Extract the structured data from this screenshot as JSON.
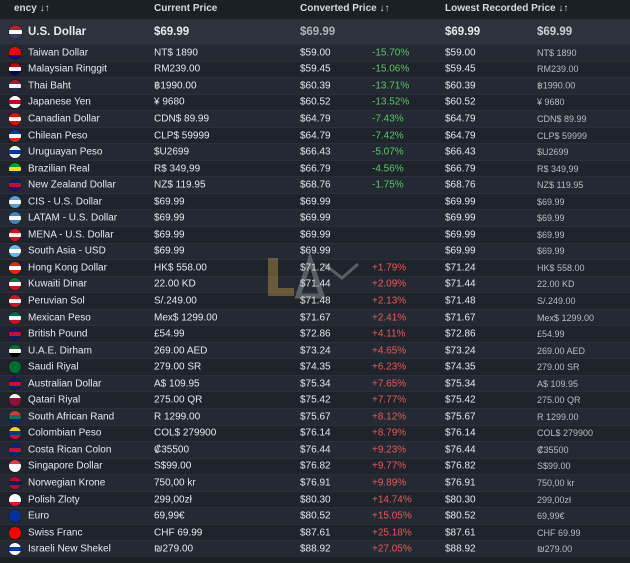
{
  "headers": {
    "currency": "ency ↓↑",
    "current": "Current Price",
    "converted": "Converted Price ↓↑",
    "lowest": "Lowest Recorded Price ↓↑"
  },
  "base": {
    "name": "U.S. Dollar",
    "current": "$69.99",
    "converted": "$69.99",
    "lowest": "$69.99",
    "lowest_native": "$69.99",
    "flag": [
      "#b22234",
      "#ffffff",
      "#3c3b6e"
    ]
  },
  "rows": [
    {
      "name": "Taiwan Dollar",
      "current": "NT$ 1890",
      "converted": "$59.00",
      "pct": "-15.70%",
      "lowest": "$59.00",
      "lowest_native": "NT$ 1890",
      "flag": [
        "#fe0000",
        "#fe0000",
        "#000095"
      ]
    },
    {
      "name": "Malaysian Ringgit",
      "current": "RM239.00",
      "converted": "$59.45",
      "pct": "-15.06%",
      "lowest": "$59.45",
      "lowest_native": "RM239.00",
      "flag": [
        "#cc0001",
        "#ffffff",
        "#010066"
      ]
    },
    {
      "name": "Thai Baht",
      "current": "฿1990.00",
      "converted": "$60.39",
      "pct": "-13.71%",
      "lowest": "$60.39",
      "lowest_native": "฿1990.00",
      "flag": [
        "#a51931",
        "#f4f5f8",
        "#2d2a4a"
      ]
    },
    {
      "name": "Japanese Yen",
      "current": "¥ 9680",
      "converted": "$60.52",
      "pct": "-13.52%",
      "lowest": "$60.52",
      "lowest_native": "¥ 9680",
      "flag": [
        "#ffffff",
        "#bc002d",
        "#ffffff"
      ]
    },
    {
      "name": "Canadian Dollar",
      "current": "CDN$ 89.99",
      "converted": "$64.79",
      "pct": "-7.43%",
      "lowest": "$64.79",
      "lowest_native": "CDN$ 89.99",
      "flag": [
        "#ff0000",
        "#ffffff",
        "#ff0000"
      ]
    },
    {
      "name": "Chilean Peso",
      "current": "CLP$ 59999",
      "converted": "$64.79",
      "pct": "-7.42%",
      "lowest": "$64.79",
      "lowest_native": "CLP$ 59999",
      "flag": [
        "#0039a6",
        "#ffffff",
        "#d52b1e"
      ]
    },
    {
      "name": "Uruguayan Peso",
      "current": "$U2699",
      "converted": "$66.43",
      "pct": "-5.07%",
      "lowest": "$66.43",
      "lowest_native": "$U2699",
      "flag": [
        "#ffffff",
        "#0038a8",
        "#ffffff"
      ]
    },
    {
      "name": "Brazilian Real",
      "current": "R$ 349,99",
      "converted": "$66.79",
      "pct": "-4.56%",
      "lowest": "$66.79",
      "lowest_native": "R$ 349,99",
      "flag": [
        "#009c3b",
        "#ffdf00",
        "#002776"
      ]
    },
    {
      "name": "New Zealand Dollar",
      "current": "NZ$ 119.95",
      "converted": "$68.76",
      "pct": "-1.75%",
      "lowest": "$68.76",
      "lowest_native": "NZ$ 119.95",
      "flag": [
        "#012169",
        "#c8102e",
        "#012169"
      ]
    },
    {
      "name": "CIS - U.S. Dollar",
      "current": "$69.99",
      "converted": "$69.99",
      "pct": "",
      "lowest": "$69.99",
      "lowest_native": "$69.99",
      "flag": [
        "#5a9bd5",
        "#ffffff",
        "#5a9bd5"
      ]
    },
    {
      "name": "LATAM - U.S. Dollar",
      "current": "$69.99",
      "converted": "$69.99",
      "pct": "",
      "lowest": "$69.99",
      "lowest_native": "$69.99",
      "flag": [
        "#4a7fc1",
        "#ffffff",
        "#4a7fc1"
      ]
    },
    {
      "name": "MENA - U.S. Dollar",
      "current": "$69.99",
      "converted": "$69.99",
      "pct": "",
      "lowest": "$69.99",
      "lowest_native": "$69.99",
      "flag": [
        "#e30a17",
        "#ffffff",
        "#e30a17"
      ]
    },
    {
      "name": "South Asia - USD",
      "current": "$69.99",
      "converted": "$69.99",
      "pct": "",
      "lowest": "$69.99",
      "lowest_native": "$69.99",
      "flag": [
        "#6bb6e8",
        "#ffffff",
        "#6bb6e8"
      ]
    },
    {
      "name": "Hong Kong Dollar",
      "current": "HK$ 558.00",
      "converted": "$71.24",
      "pct": "+1.79%",
      "lowest": "$71.24",
      "lowest_native": "HK$ 558.00",
      "flag": [
        "#de2910",
        "#ffffff",
        "#de2910"
      ]
    },
    {
      "name": "Kuwaiti Dinar",
      "current": "22.00 KD",
      "converted": "$71.44",
      "pct": "+2.09%",
      "lowest": "$71.44",
      "lowest_native": "22.00 KD",
      "flag": [
        "#007a3d",
        "#ffffff",
        "#ce1126"
      ]
    },
    {
      "name": "Peruvian Sol",
      "current": "S/.249.00",
      "converted": "$71.48",
      "pct": "+2.13%",
      "lowest": "$71.48",
      "lowest_native": "S/.249.00",
      "flag": [
        "#d91023",
        "#ffffff",
        "#d91023"
      ]
    },
    {
      "name": "Mexican Peso",
      "current": "Mex$ 1299.00",
      "converted": "$71.67",
      "pct": "+2.41%",
      "lowest": "$71.67",
      "lowest_native": "Mex$ 1299.00",
      "flag": [
        "#006847",
        "#ffffff",
        "#ce1126"
      ]
    },
    {
      "name": "British Pound",
      "current": "£54.99",
      "converted": "$72.86",
      "pct": "+4.11%",
      "lowest": "$72.86",
      "lowest_native": "£54.99",
      "flag": [
        "#012169",
        "#c8102e",
        "#012169"
      ]
    },
    {
      "name": "U.A.E. Dirham",
      "current": "269.00 AED",
      "converted": "$73.24",
      "pct": "+4.65%",
      "lowest": "$73.24",
      "lowest_native": "269.00 AED",
      "flag": [
        "#00732f",
        "#ffffff",
        "#000000"
      ]
    },
    {
      "name": "Saudi Riyal",
      "current": "279.00 SR",
      "converted": "$74.35",
      "pct": "+6.23%",
      "lowest": "$74.35",
      "lowest_native": "279.00 SR",
      "flag": [
        "#006c35",
        "#006c35",
        "#006c35"
      ]
    },
    {
      "name": "Australian Dollar",
      "current": "A$ 109.95",
      "converted": "$75.34",
      "pct": "+7.65%",
      "lowest": "$75.34",
      "lowest_native": "A$ 109.95",
      "flag": [
        "#012169",
        "#c8102e",
        "#012169"
      ]
    },
    {
      "name": "Qatari Riyal",
      "current": "275.00 QR",
      "converted": "$75.42",
      "pct": "+7.77%",
      "lowest": "$75.42",
      "lowest_native": "275.00 QR",
      "flag": [
        "#ffffff",
        "#8a1538",
        "#8a1538"
      ]
    },
    {
      "name": "South African Rand",
      "current": "R 1299.00",
      "converted": "$75.67",
      "pct": "+8.12%",
      "lowest": "$75.67",
      "lowest_native": "R 1299.00",
      "flag": [
        "#de3831",
        "#007a4d",
        "#002395"
      ]
    },
    {
      "name": "Colombian Peso",
      "current": "COL$ 279900",
      "converted": "$76.14",
      "pct": "+8.79%",
      "lowest": "$76.14",
      "lowest_native": "COL$ 279900",
      "flag": [
        "#fcd116",
        "#003893",
        "#ce1126"
      ]
    },
    {
      "name": "Costa Rican Colon",
      "current": "₡35500",
      "converted": "$76.44",
      "pct": "+9.23%",
      "lowest": "$76.44",
      "lowest_native": "₡35500",
      "flag": [
        "#002b7f",
        "#ce1126",
        "#002b7f"
      ]
    },
    {
      "name": "Singapore Dollar",
      "current": "S$99.00",
      "converted": "$76.82",
      "pct": "+9.77%",
      "lowest": "$76.82",
      "lowest_native": "S$99.00",
      "flag": [
        "#ef3340",
        "#ffffff",
        "#ffffff"
      ]
    },
    {
      "name": "Norwegian Krone",
      "current": "750,00 kr",
      "converted": "$76.91",
      "pct": "+9.89%",
      "lowest": "$76.91",
      "lowest_native": "750,00 kr",
      "flag": [
        "#ba0c2f",
        "#00205b",
        "#ba0c2f"
      ]
    },
    {
      "name": "Polish Zloty",
      "current": "299,00zł",
      "converted": "$80.30",
      "pct": "+14.74%",
      "lowest": "$80.30",
      "lowest_native": "299,00zł",
      "flag": [
        "#ffffff",
        "#ffffff",
        "#dc143c"
      ]
    },
    {
      "name": "Euro",
      "current": "69,99€",
      "converted": "$80.52",
      "pct": "+15.05%",
      "lowest": "$80.52",
      "lowest_native": "69,99€",
      "flag": [
        "#003399",
        "#003399",
        "#003399"
      ]
    },
    {
      "name": "Swiss Franc",
      "current": "CHF 69.99",
      "converted": "$87.61",
      "pct": "+25.18%",
      "lowest": "$87.61",
      "lowest_native": "CHF 69.99",
      "flag": [
        "#ff0000",
        "#ff0000",
        "#ff0000"
      ]
    },
    {
      "name": "Israeli New Shekel",
      "current": "₪279.00",
      "converted": "$88.92",
      "pct": "+27.05%",
      "lowest": "$88.92",
      "lowest_native": "₪279.00",
      "flag": [
        "#ffffff",
        "#0038b8",
        "#ffffff"
      ]
    }
  ],
  "colors": {
    "negative": "#5ec46a",
    "positive": "#ea5a5a"
  }
}
